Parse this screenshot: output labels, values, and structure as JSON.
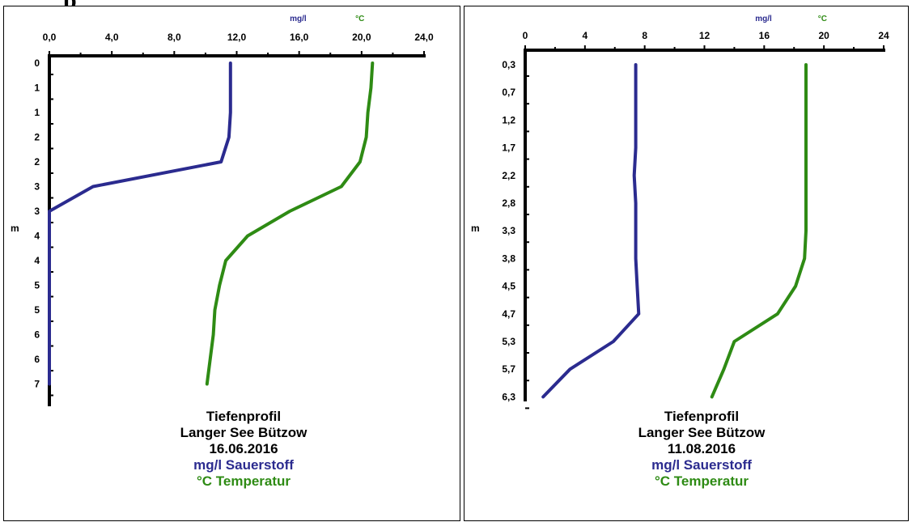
{
  "header": {
    "partial_title": "p"
  },
  "colors": {
    "oxygen": "#2b2b8f",
    "temperature": "#2e8b14",
    "axis": "#000000"
  },
  "chart_data": [
    {
      "type": "line",
      "unit_labels": {
        "oxygen": "mg/l",
        "temperature": "°C"
      },
      "x_ticks": [
        "0,0",
        "4,0",
        "8,0",
        "12,0",
        "16,0",
        "20,0",
        "24,0"
      ],
      "xlim": [
        0,
        24
      ],
      "ylabel": "m",
      "y_ticks": [
        "0",
        "1",
        "1",
        "2",
        "2",
        "3",
        "3",
        "4",
        "4",
        "5",
        "5",
        "6",
        "6",
        "7"
      ],
      "series": [
        {
          "name": "mg/l Sauerstoff",
          "color": "#2b2b8f",
          "depth_index": [
            0,
            1,
            2,
            3,
            4,
            5,
            6,
            7,
            8,
            9,
            10,
            11,
            12,
            13
          ],
          "values": [
            11.6,
            11.6,
            11.6,
            11.5,
            11.0,
            2.8,
            0.0,
            0.0,
            0.0,
            0.0,
            0.0,
            0.0,
            0.0,
            0.0
          ]
        },
        {
          "name": "°C Temperatur",
          "color": "#2e8b14",
          "depth_index": [
            0,
            1,
            2,
            3,
            4,
            5,
            6,
            7,
            8,
            9,
            10,
            11,
            12,
            13
          ],
          "values": [
            20.7,
            20.6,
            20.4,
            20.3,
            19.9,
            18.7,
            15.4,
            12.7,
            11.3,
            10.9,
            10.6,
            10.5,
            10.3,
            10.1
          ]
        }
      ],
      "caption": [
        "Tiefenprofil",
        "Langer See Bützow",
        "16.06.2016",
        "mg/l Sauerstoff",
        "°C Temperatur"
      ]
    },
    {
      "type": "line",
      "unit_labels": {
        "oxygen": "mg/l",
        "temperature": "°C"
      },
      "x_ticks": [
        "0",
        "4",
        "8",
        "12",
        "16",
        "20",
        "24"
      ],
      "xlim": [
        0,
        24
      ],
      "ylabel": "m",
      "y_ticks": [
        "0,3",
        "0,7",
        "1,2",
        "1,7",
        "2,2",
        "2,8",
        "3,3",
        "3,8",
        "4,5",
        "4,7",
        "5,3",
        "5,7",
        "6,3"
      ],
      "series": [
        {
          "name": "mg/l Sauerstoff",
          "color": "#2b2b8f",
          "depth_index": [
            0,
            1,
            2,
            3,
            4,
            5,
            6,
            7,
            8,
            9,
            10,
            11,
            12
          ],
          "values": [
            7.4,
            7.4,
            7.4,
            7.4,
            7.3,
            7.4,
            7.4,
            7.4,
            7.5,
            7.6,
            5.9,
            3.0,
            1.2
          ]
        },
        {
          "name": "°C Temperatur",
          "color": "#2e8b14",
          "depth_index": [
            0,
            1,
            2,
            3,
            4,
            5,
            6,
            7,
            8,
            9,
            10,
            11,
            12
          ],
          "values": [
            18.8,
            18.8,
            18.8,
            18.8,
            18.8,
            18.8,
            18.8,
            18.7,
            18.1,
            16.9,
            14.0,
            13.3,
            12.5
          ]
        }
      ],
      "caption": [
        "Tiefenprofil",
        "Langer See Bützow",
        "11.08.2016",
        "mg/l Sauerstoff",
        "°C Temperatur"
      ]
    }
  ]
}
